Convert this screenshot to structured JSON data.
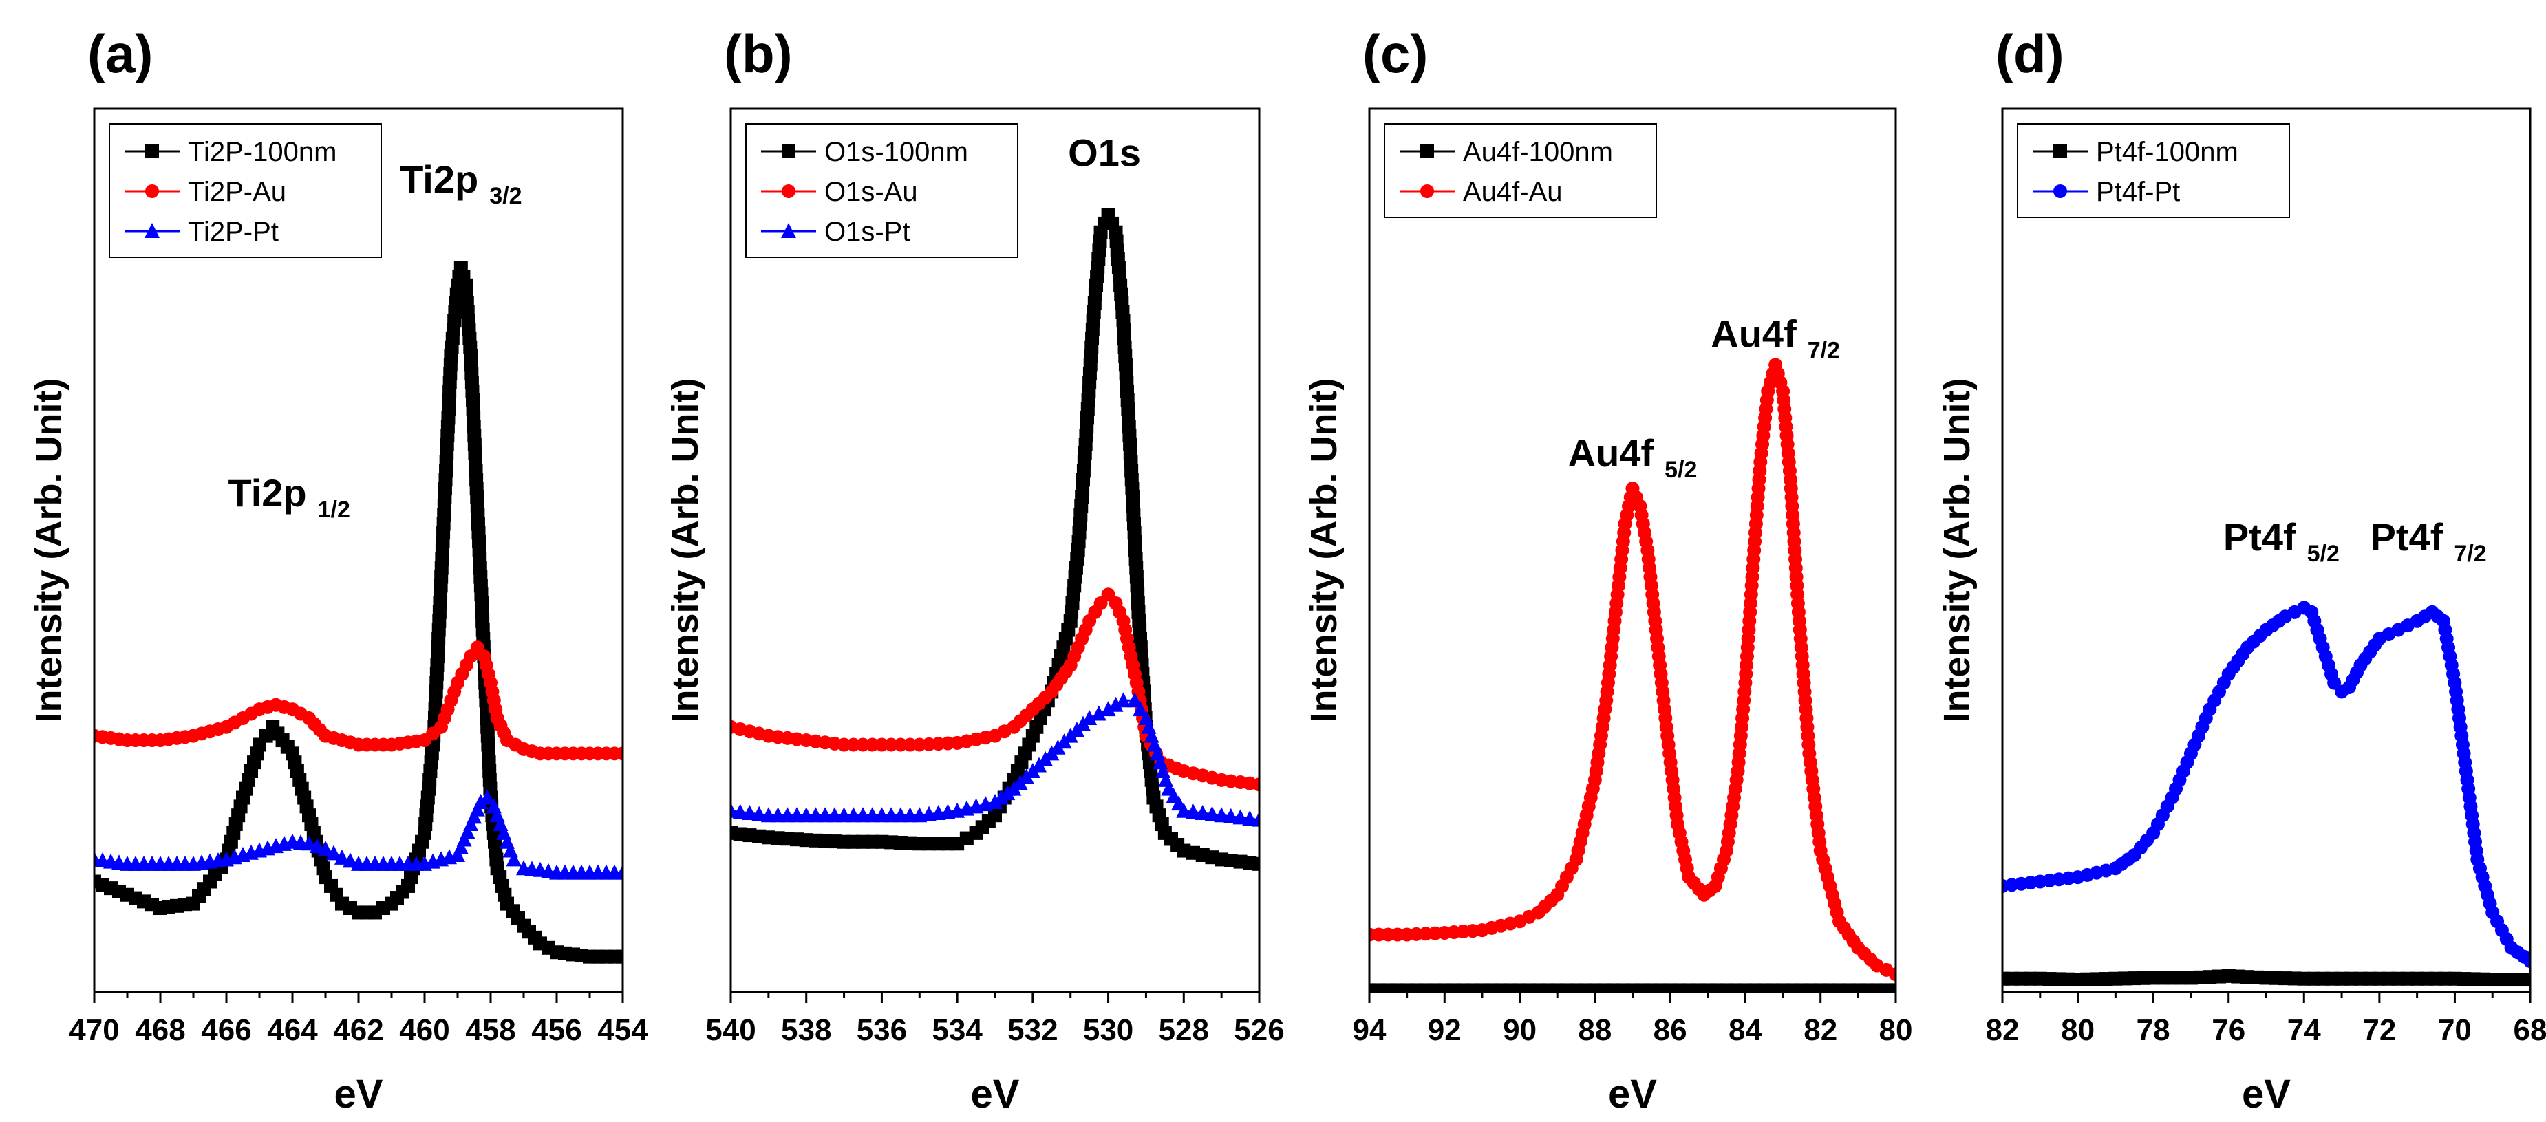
{
  "chart_data": [
    {
      "panel_label": "(a)",
      "type": "line",
      "xlabel": "eV",
      "ylabel": "Intensity (Arb. Unit)",
      "xlim": [
        470,
        454
      ],
      "ylim": [
        0,
        1
      ],
      "x_ticks": [
        "470",
        "468",
        "466",
        "464",
        "462",
        "460",
        "458",
        "456",
        "454"
      ],
      "x_tick_values": [
        470,
        468,
        466,
        464,
        462,
        460,
        458,
        456,
        454
      ],
      "legend": [
        "Ti2P-100nm",
        "Ti2P-Au",
        "Ti2P-Pt"
      ],
      "annotations": [
        {
          "main": "Ti2p",
          "sub": "3/2",
          "x": 458.9,
          "y": 0.905
        },
        {
          "main": "Ti2p",
          "sub": "1/2",
          "x": 464.1,
          "y": 0.55
        }
      ],
      "series": [
        {
          "name": "Ti2P-100nm",
          "color": "#000000",
          "marker": "square",
          "x": [
            470,
            469,
            468,
            467,
            466,
            465.5,
            465,
            464.6,
            464,
            463.5,
            463,
            462.5,
            462,
            461.5,
            461,
            460.5,
            460,
            459.7,
            459.4,
            459.2,
            459,
            458.9,
            458.75,
            458.6,
            458.4,
            458.2,
            458,
            457.8,
            457.5,
            457,
            456.5,
            456,
            455,
            454
          ],
          "y": [
            0.125,
            0.11,
            0.095,
            0.1,
            0.15,
            0.22,
            0.28,
            0.3,
            0.27,
            0.2,
            0.13,
            0.1,
            0.09,
            0.09,
            0.1,
            0.12,
            0.18,
            0.3,
            0.55,
            0.72,
            0.8,
            0.82,
            0.8,
            0.72,
            0.55,
            0.38,
            0.22,
            0.14,
            0.1,
            0.075,
            0.055,
            0.045,
            0.04,
            0.04
          ]
        },
        {
          "name": "Ti2P-Au",
          "color": "#ff0000",
          "marker": "circle",
          "x": [
            470,
            469,
            468,
            467,
            466,
            465,
            464.5,
            464,
            463.5,
            463,
            462.5,
            462,
            461.5,
            461,
            460,
            459.5,
            459,
            458.6,
            458.4,
            458.2,
            458,
            457.8,
            457.5,
            457,
            456.5,
            456,
            455,
            454
          ],
          "y": [
            0.29,
            0.285,
            0.285,
            0.29,
            0.3,
            0.32,
            0.325,
            0.32,
            0.31,
            0.29,
            0.285,
            0.28,
            0.28,
            0.28,
            0.285,
            0.3,
            0.35,
            0.38,
            0.39,
            0.38,
            0.35,
            0.31,
            0.285,
            0.275,
            0.27,
            0.27,
            0.27,
            0.27
          ]
        },
        {
          "name": "Ti2P-Pt",
          "color": "#0000ff",
          "marker": "triangle",
          "x": [
            470,
            469,
            468,
            467,
            466,
            465,
            464,
            463.5,
            463,
            462.5,
            462,
            461.5,
            461,
            460,
            459,
            458.6,
            458.3,
            458.1,
            457.9,
            457.6,
            457.3,
            457,
            456.5,
            456,
            455,
            454
          ],
          "y": [
            0.15,
            0.145,
            0.145,
            0.145,
            0.15,
            0.16,
            0.17,
            0.168,
            0.162,
            0.152,
            0.145,
            0.145,
            0.145,
            0.145,
            0.155,
            0.19,
            0.215,
            0.22,
            0.21,
            0.18,
            0.15,
            0.14,
            0.138,
            0.135,
            0.135,
            0.135
          ]
        }
      ]
    },
    {
      "panel_label": "(b)",
      "type": "line",
      "xlabel": "eV",
      "ylabel": "Intensity (Arb. Unit)",
      "xlim": [
        540,
        526
      ],
      "ylim": [
        0,
        1
      ],
      "x_ticks": [
        "540",
        "538",
        "536",
        "534",
        "532",
        "530",
        "528",
        "526"
      ],
      "x_tick_values": [
        540,
        538,
        536,
        534,
        532,
        530,
        528,
        526
      ],
      "legend": [
        "O1s-100nm",
        "O1s-Au",
        "O1s-Pt"
      ],
      "annotations": [
        {
          "main": "O1s",
          "sub": "",
          "x": 530.1,
          "y": 0.935
        }
      ],
      "series": [
        {
          "name": "O1s-100nm",
          "color": "#000000",
          "marker": "square",
          "x": [
            540,
            539,
            538,
            537,
            536,
            535,
            534,
            533.5,
            533,
            532.5,
            532,
            531.5,
            531,
            530.8,
            530.6,
            530.4,
            530.2,
            530,
            529.8,
            529.6,
            529.4,
            529.2,
            529,
            528.8,
            528.5,
            528,
            527,
            526
          ],
          "y": [
            0.18,
            0.175,
            0.172,
            0.17,
            0.17,
            0.168,
            0.168,
            0.18,
            0.2,
            0.24,
            0.29,
            0.34,
            0.42,
            0.5,
            0.62,
            0.76,
            0.86,
            0.88,
            0.86,
            0.76,
            0.6,
            0.43,
            0.3,
            0.22,
            0.18,
            0.16,
            0.15,
            0.145
          ]
        },
        {
          "name": "O1s-Au",
          "color": "#ff0000",
          "marker": "circle",
          "x": [
            540,
            539,
            538,
            537,
            536,
            535,
            534,
            533,
            532.5,
            532,
            531.5,
            531,
            530.5,
            530.2,
            530,
            529.8,
            529.6,
            529.4,
            529.2,
            529,
            528.6,
            528,
            527,
            526
          ],
          "y": [
            0.3,
            0.29,
            0.285,
            0.28,
            0.28,
            0.28,
            0.282,
            0.29,
            0.3,
            0.32,
            0.34,
            0.37,
            0.42,
            0.44,
            0.45,
            0.44,
            0.42,
            0.38,
            0.34,
            0.29,
            0.26,
            0.25,
            0.24,
            0.235
          ]
        },
        {
          "name": "O1s-Pt",
          "color": "#0000ff",
          "marker": "triangle",
          "x": [
            540,
            539,
            538,
            537,
            536,
            535,
            534,
            533,
            532.5,
            532,
            531.5,
            531,
            530.5,
            530,
            529.6,
            529.3,
            529,
            528.7,
            528.4,
            528,
            527,
            526
          ],
          "y": [
            0.205,
            0.2,
            0.2,
            0.2,
            0.2,
            0.2,
            0.205,
            0.215,
            0.23,
            0.25,
            0.27,
            0.29,
            0.31,
            0.32,
            0.33,
            0.33,
            0.31,
            0.27,
            0.23,
            0.205,
            0.2,
            0.195
          ]
        }
      ]
    },
    {
      "panel_label": "(c)",
      "type": "line",
      "xlabel": "eV",
      "ylabel": "Intensity (Arb. Unit)",
      "xlim": [
        94,
        80
      ],
      "ylim": [
        0,
        1
      ],
      "x_ticks": [
        "94",
        "92",
        "90",
        "88",
        "86",
        "84",
        "82",
        "80"
      ],
      "x_tick_values": [
        94,
        92,
        90,
        88,
        86,
        84,
        82,
        80
      ],
      "legend": [
        "Au4f-100nm",
        "Au4f-Au"
      ],
      "annotations": [
        {
          "main": "Au4f",
          "sub": "7/2",
          "x": 83.2,
          "y": 0.73
        },
        {
          "main": "Au4f",
          "sub": "5/2",
          "x": 87.0,
          "y": 0.595
        }
      ],
      "series": [
        {
          "name": "Au4f-100nm",
          "color": "#000000",
          "marker": "square",
          "x": [
            94,
            93,
            92,
            91,
            90,
            89,
            88,
            87,
            86,
            85,
            84,
            83,
            82,
            81,
            80
          ],
          "y": [
            0.002,
            0.002,
            0.002,
            0.002,
            0.002,
            0.002,
            0.002,
            0.002,
            0.002,
            0.002,
            0.002,
            0.002,
            0.002,
            0.002,
            0.002
          ]
        },
        {
          "name": "Au4f-Au",
          "color": "#ff0000",
          "marker": "circle",
          "x": [
            94,
            93,
            92,
            91,
            90,
            89.5,
            89,
            88.5,
            88,
            87.7,
            87.4,
            87.2,
            87,
            86.8,
            86.6,
            86.4,
            86.1,
            85.8,
            85.5,
            85.1,
            84.8,
            84.5,
            84.2,
            84,
            83.8,
            83.6,
            83.4,
            83.2,
            83,
            82.8,
            82.6,
            82.3,
            82,
            81.5,
            81,
            80.5,
            80
          ],
          "y": [
            0.065,
            0.065,
            0.067,
            0.07,
            0.08,
            0.09,
            0.11,
            0.15,
            0.24,
            0.33,
            0.45,
            0.53,
            0.57,
            0.55,
            0.5,
            0.42,
            0.3,
            0.19,
            0.13,
            0.11,
            0.12,
            0.16,
            0.25,
            0.35,
            0.48,
            0.6,
            0.68,
            0.71,
            0.68,
            0.58,
            0.44,
            0.27,
            0.16,
            0.08,
            0.05,
            0.03,
            0.02
          ]
        }
      ]
    },
    {
      "panel_label": "(d)",
      "type": "line",
      "xlabel": "eV",
      "ylabel": "Intensity (Arb. Unit)",
      "xlim": [
        82,
        68
      ],
      "ylim": [
        0,
        1
      ],
      "x_ticks": [
        "82",
        "80",
        "78",
        "76",
        "74",
        "72",
        "70",
        "68"
      ],
      "x_tick_values": [
        82,
        80,
        78,
        76,
        74,
        72,
        70,
        68
      ],
      "legend": [
        "Pt4f-100nm",
        "Pt4f-Pt"
      ],
      "annotations": [
        {
          "main": "Pt4f",
          "sub": "5/2",
          "x": 74.6,
          "y": 0.5
        },
        {
          "main": "Pt4f",
          "sub": "7/2",
          "x": 70.7,
          "y": 0.5
        }
      ],
      "series": [
        {
          "name": "Pt4f-100nm",
          "color": "#000000",
          "marker": "square",
          "x": [
            82,
            81,
            80,
            79,
            78,
            77,
            76,
            75,
            74,
            73,
            72,
            71,
            70,
            69,
            68
          ],
          "y": [
            0.015,
            0.015,
            0.014,
            0.015,
            0.016,
            0.016,
            0.018,
            0.016,
            0.015,
            0.015,
            0.015,
            0.015,
            0.015,
            0.014,
            0.014
          ]
        },
        {
          "name": "Pt4f-Pt",
          "color": "#0000ff",
          "marker": "circle",
          "x": [
            82,
            81,
            80,
            79,
            78.5,
            78,
            77.5,
            77,
            76.5,
            76,
            75.5,
            75,
            74.5,
            74,
            73.8,
            73.5,
            73.2,
            73,
            72.8,
            72.5,
            72,
            71.5,
            71,
            70.6,
            70.3,
            70,
            69.7,
            69.4,
            69,
            68.5,
            68
          ],
          "y": [
            0.12,
            0.125,
            0.13,
            0.14,
            0.155,
            0.18,
            0.22,
            0.27,
            0.32,
            0.36,
            0.39,
            0.41,
            0.425,
            0.435,
            0.43,
            0.39,
            0.35,
            0.34,
            0.345,
            0.37,
            0.4,
            0.41,
            0.42,
            0.43,
            0.42,
            0.35,
            0.25,
            0.15,
            0.09,
            0.05,
            0.035
          ]
        }
      ]
    }
  ]
}
